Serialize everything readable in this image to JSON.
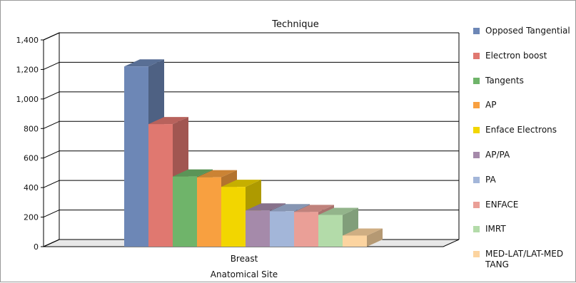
{
  "chart_data": {
    "type": "bar",
    "title": "Technique",
    "xlabel": "Anatomical Site",
    "ylabel": "",
    "categories": [
      "Breast"
    ],
    "ylim": [
      0,
      1400
    ],
    "yticks": [
      "0",
      "200",
      "400",
      "600",
      "800",
      "1,000",
      "1,200",
      "1,400"
    ],
    "grid": true,
    "legend_position": "right",
    "style": "3d-clustered-column",
    "series": [
      {
        "name": "Opposed Tangential",
        "values": [
          1220
        ],
        "color": "#6d87b6"
      },
      {
        "name": "Electron boost",
        "values": [
          830
        ],
        "color": "#e07870"
      },
      {
        "name": "Tangents",
        "values": [
          475
        ],
        "color": "#6fb46a"
      },
      {
        "name": "AP",
        "values": [
          470
        ],
        "color": "#f8a040"
      },
      {
        "name": "Enface Electrons",
        "values": [
          405
        ],
        "color": "#f2d600"
      },
      {
        "name": "AP/PA",
        "values": [
          245
        ],
        "color": "#a58aaa"
      },
      {
        "name": "PA",
        "values": [
          240
        ],
        "color": "#a3b6d9"
      },
      {
        "name": "ENFACE",
        "values": [
          235
        ],
        "color": "#ea9f97"
      },
      {
        "name": "IMRT",
        "values": [
          215
        ],
        "color": "#b3dba9"
      },
      {
        "name": "MED-LAT/LAT-MED TANG",
        "values": [
          75
        ],
        "color": "#fcd4a0"
      }
    ]
  }
}
